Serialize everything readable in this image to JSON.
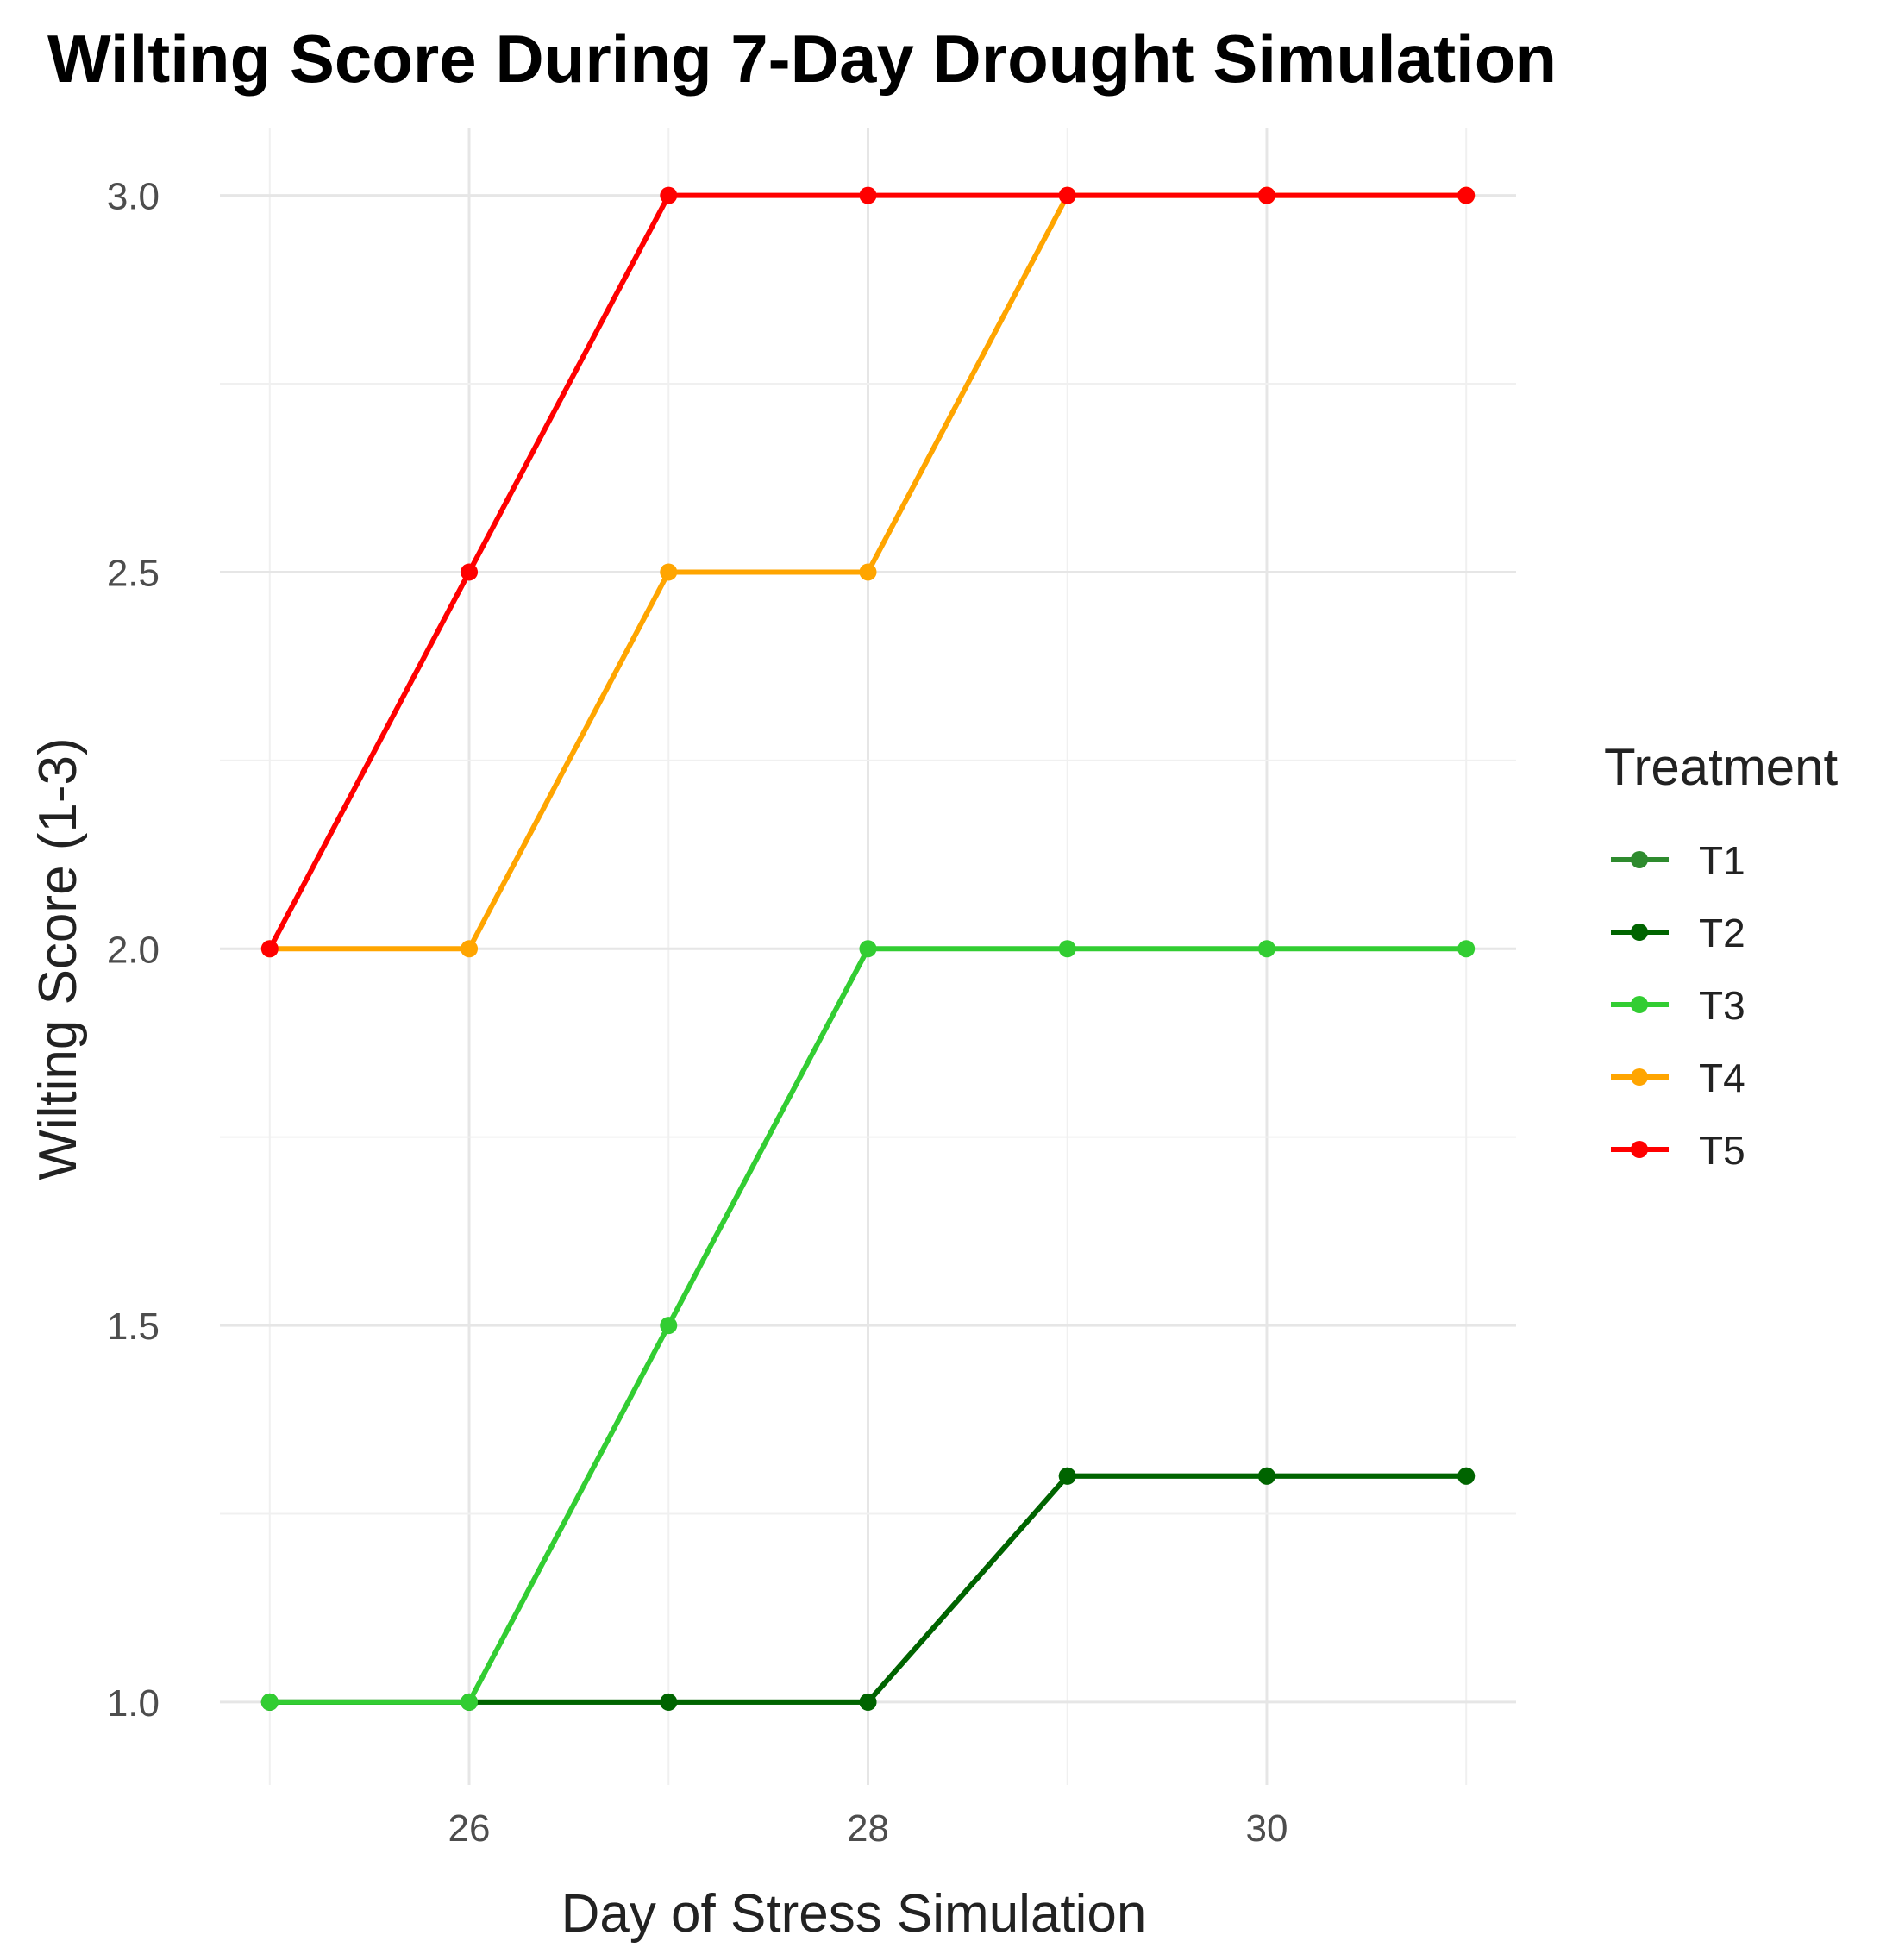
{
  "chart_data": {
    "type": "line",
    "title": "Wilting Score During 7-Day Drought Simulation",
    "xlabel": "Day of Stress Simulation",
    "ylabel": "Wilting Score (1-3)",
    "x": [
      25,
      26,
      27,
      28,
      29,
      30,
      31
    ],
    "xlim": [
      24.75,
      31.25
    ],
    "ylim": [
      0.89,
      3.09
    ],
    "x_ticks": [
      26,
      28,
      30
    ],
    "x_tick_labels": [
      "26",
      "28",
      "30"
    ],
    "y_ticks": [
      1.0,
      1.5,
      2.0,
      2.5,
      3.0
    ],
    "y_tick_labels": [
      "1.0",
      "1.5",
      "2.0",
      "2.5",
      "3.0"
    ],
    "grid": true,
    "legend": {
      "title": "Treatment",
      "position": "right"
    },
    "series": [
      {
        "name": "T1",
        "color": "#2e8b2e",
        "values": [
          1.0,
          1.0,
          1.0,
          1.0,
          1.3,
          1.3,
          1.3
        ]
      },
      {
        "name": "T2",
        "color": "#006400",
        "values": [
          1.0,
          1.0,
          1.0,
          1.0,
          1.3,
          1.3,
          1.3
        ]
      },
      {
        "name": "T3",
        "color": "#32cd32",
        "values": [
          1.0,
          1.0,
          1.5,
          2.0,
          2.0,
          2.0,
          2.0
        ]
      },
      {
        "name": "T4",
        "color": "#ffa500",
        "values": [
          2.0,
          2.0,
          2.5,
          2.5,
          3.0,
          3.0,
          3.0
        ]
      },
      {
        "name": "T5",
        "color": "#ff0000",
        "values": [
          2.0,
          2.5,
          3.0,
          3.0,
          3.0,
          3.0,
          3.0
        ]
      }
    ]
  }
}
